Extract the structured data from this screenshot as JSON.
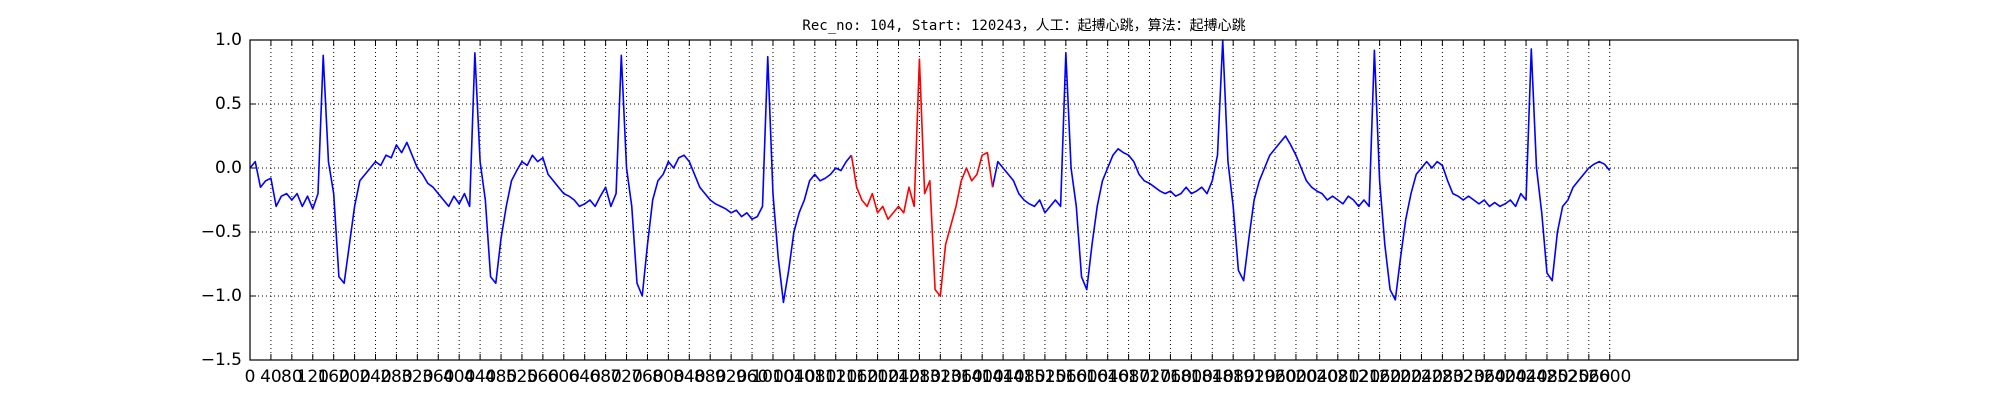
{
  "chart_data": {
    "type": "line",
    "title": "Rec_no: 104, Start: 120243，人工：起搏心跳，算法：起搏心跳",
    "x": [
      0,
      10,
      20,
      30,
      40,
      50,
      60,
      70,
      80,
      90,
      100,
      110,
      120,
      130,
      140,
      150,
      160,
      170,
      180,
      190,
      200,
      210,
      220,
      230,
      240,
      250,
      260,
      270,
      280,
      290,
      300,
      310,
      320,
      330,
      340,
      350,
      360,
      370,
      380,
      390,
      400,
      410,
      420,
      430,
      440,
      450,
      460,
      470,
      480,
      490,
      500,
      510,
      520,
      530,
      540,
      550,
      560,
      570,
      580,
      590,
      600,
      610,
      620,
      630,
      640,
      650,
      660,
      670,
      680,
      690,
      700,
      710,
      720,
      730,
      740,
      750,
      760,
      770,
      780,
      790,
      800,
      810,
      820,
      830,
      840,
      850,
      860,
      870,
      880,
      890,
      900,
      910,
      920,
      930,
      940,
      950,
      960,
      970,
      980,
      990,
      1000,
      1010,
      1020,
      1030,
      1040,
      1050,
      1060,
      1070,
      1080,
      1090,
      1100,
      1110,
      1120,
      1130,
      1140,
      1150,
      1160,
      1170,
      1180,
      1190,
      1200,
      1210,
      1220,
      1230,
      1240,
      1250,
      1260,
      1270,
      1280,
      1290,
      1300,
      1310,
      1320,
      1330,
      1340,
      1350,
      1360,
      1370,
      1380,
      1390,
      1400,
      1410,
      1420,
      1430,
      1440,
      1450,
      1460,
      1470,
      1480,
      1490,
      1500,
      1510,
      1520,
      1530,
      1540,
      1550,
      1560,
      1570,
      1580,
      1590,
      1600,
      1610,
      1620,
      1630,
      1640,
      1650,
      1660,
      1670,
      1680,
      1690,
      1700,
      1710,
      1720,
      1730,
      1740,
      1750,
      1760,
      1770,
      1780,
      1790,
      1800,
      1810,
      1820,
      1830,
      1840,
      1850,
      1860,
      1870,
      1880,
      1890,
      1900,
      1910,
      1920,
      1930,
      1940,
      1950,
      1960,
      1970,
      1980,
      1990,
      2000,
      2010,
      2020,
      2030,
      2040,
      2050,
      2060,
      2070,
      2080,
      2090,
      2100,
      2110,
      2120,
      2130,
      2140,
      2150,
      2160,
      2170,
      2180,
      2190,
      2200,
      2210,
      2220,
      2230,
      2240,
      2250,
      2260,
      2270,
      2280,
      2290,
      2300,
      2310,
      2320,
      2330,
      2340,
      2350,
      2360,
      2370,
      2380,
      2390,
      2400,
      2410,
      2420,
      2430,
      2440,
      2450,
      2460,
      2470,
      2480,
      2490,
      2500,
      2510,
      2520,
      2530,
      2540,
      2550,
      2560,
      2570,
      2580,
      2590,
      2600
    ],
    "series": [
      {
        "color": "#0000ff",
        "values": [
          0.0,
          0.05,
          -0.15,
          -0.1,
          -0.08,
          -0.3,
          -0.22,
          -0.2,
          -0.25,
          -0.2,
          -0.3,
          -0.22,
          -0.32,
          -0.2,
          0.88,
          0.05,
          -0.2,
          -0.85,
          -0.9,
          -0.6,
          -0.3,
          -0.1,
          -0.05,
          0.0,
          0.05,
          0.02,
          0.1,
          0.08,
          0.18,
          0.12,
          0.2,
          0.1,
          0.0,
          -0.05,
          -0.12,
          -0.15,
          -0.2,
          -0.25,
          -0.3,
          -0.22,
          -0.28,
          -0.2,
          -0.3,
          0.9,
          0.05,
          -0.25,
          -0.85,
          -0.9,
          -0.55,
          -0.3,
          -0.1,
          -0.02,
          0.05,
          0.02,
          0.1,
          0.05,
          0.08,
          -0.05,
          -0.1,
          -0.15,
          -0.2,
          -0.22,
          -0.25,
          -0.3,
          -0.28,
          -0.25,
          -0.3,
          -0.22,
          -0.15,
          -0.3,
          -0.2,
          0.88,
          0.0,
          -0.3,
          -0.9,
          -1.0,
          -0.6,
          -0.25,
          -0.1,
          -0.05,
          0.05,
          0.0,
          0.08,
          0.1,
          0.05,
          -0.05,
          -0.15,
          -0.2,
          -0.25,
          -0.28,
          -0.3,
          -0.32,
          -0.35,
          -0.33,
          -0.38,
          -0.35,
          -0.4,
          -0.38,
          -0.3,
          0.87,
          -0.2,
          -0.7,
          -1.05,
          -0.8,
          -0.5,
          -0.35,
          -0.25,
          -0.1,
          -0.05,
          -0.1,
          -0.08,
          -0.05,
          0.0,
          -0.02,
          0.05,
          0.1,
          null,
          null,
          null,
          null,
          null,
          null,
          null,
          null,
          null,
          null,
          null,
          null,
          null,
          null,
          null,
          null,
          null,
          null,
          null,
          null,
          null,
          null,
          null,
          null,
          null,
          null,
          -0.15,
          0.05,
          0.0,
          -0.05,
          -0.1,
          -0.2,
          -0.25,
          -0.28,
          -0.3,
          -0.25,
          -0.35,
          -0.3,
          -0.25,
          -0.3,
          0.9,
          0.0,
          -0.3,
          -0.85,
          -0.95,
          -0.6,
          -0.3,
          -0.1,
          0.0,
          0.1,
          0.15,
          0.12,
          0.1,
          0.05,
          -0.05,
          -0.1,
          -0.12,
          -0.15,
          -0.18,
          -0.2,
          -0.18,
          -0.22,
          -0.2,
          -0.15,
          -0.2,
          -0.18,
          -0.15,
          -0.2,
          -0.1,
          0.1,
          1.0,
          0.05,
          -0.3,
          -0.8,
          -0.88,
          -0.55,
          -0.25,
          -0.1,
          0.0,
          0.1,
          0.15,
          0.2,
          0.25,
          0.18,
          0.1,
          0.0,
          -0.1,
          -0.15,
          -0.18,
          -0.2,
          -0.25,
          -0.22,
          -0.25,
          -0.28,
          -0.22,
          -0.25,
          -0.3,
          -0.25,
          -0.3,
          0.92,
          -0.1,
          -0.6,
          -0.95,
          -1.03,
          -0.7,
          -0.4,
          -0.2,
          -0.05,
          0.0,
          0.05,
          0.0,
          0.05,
          0.02,
          -0.1,
          -0.2,
          -0.22,
          -0.25,
          -0.22,
          -0.25,
          -0.28,
          -0.25,
          -0.3,
          -0.27,
          -0.3,
          -0.28,
          -0.25,
          -0.3,
          -0.2,
          -0.25,
          0.93,
          0.0,
          -0.35,
          -0.82,
          -0.88,
          -0.5,
          -0.3,
          -0.25,
          -0.15,
          -0.1,
          -0.05,
          0.0,
          0.03,
          0.05,
          0.03,
          -0.02
        ]
      },
      {
        "color": "#ff0000",
        "x": [
          1150,
          1160,
          1170,
          1180,
          1190,
          1200,
          1210,
          1220,
          1230,
          1240,
          1250,
          1260,
          1270,
          1280,
          1290,
          1300,
          1310,
          1320,
          1330,
          1340,
          1350,
          1360,
          1370,
          1380,
          1390,
          1400,
          1410,
          1420
        ],
        "values": [
          0.1,
          -0.15,
          -0.25,
          -0.3,
          -0.2,
          -0.35,
          -0.3,
          -0.4,
          -0.35,
          -0.3,
          -0.35,
          -0.15,
          -0.3,
          0.85,
          -0.2,
          -0.1,
          -0.95,
          -1.0,
          -0.6,
          -0.45,
          -0.3,
          -0.1,
          0.0,
          -0.1,
          -0.05,
          0.1,
          0.12,
          -0.15
        ]
      }
    ],
    "xlim": [
      0,
      2960
    ],
    "xticks": [
      0,
      40,
      80,
      120,
      160,
      200,
      240,
      280,
      320,
      360,
      400,
      440,
      480,
      520,
      560,
      600,
      640,
      680,
      720,
      760,
      800,
      840,
      880,
      920,
      960,
      1000,
      1040,
      1080,
      1120,
      1160,
      1200,
      1240,
      1280,
      1320,
      1360,
      1400,
      1440,
      1480,
      1520,
      1560,
      1600,
      1640,
      1680,
      1720,
      1760,
      1800,
      1840,
      1880,
      1920,
      1960,
      2000,
      2040,
      2080,
      2120,
      2160,
      2200,
      2240,
      2280,
      2320,
      2360,
      2400,
      2440,
      2480,
      2520,
      2560,
      2600
    ],
    "ylim": [
      -1.5,
      1.0
    ],
    "yticks": [
      {
        "value": -1.5,
        "label": "−1.5"
      },
      {
        "value": -1.0,
        "label": "−1.0"
      },
      {
        "value": -0.5,
        "label": "−0.5"
      },
      {
        "value": 0,
        "label": "0.0"
      },
      0.5,
      {
        "value": 1,
        "label": "1.0"
      }
    ],
    "grid": true
  }
}
